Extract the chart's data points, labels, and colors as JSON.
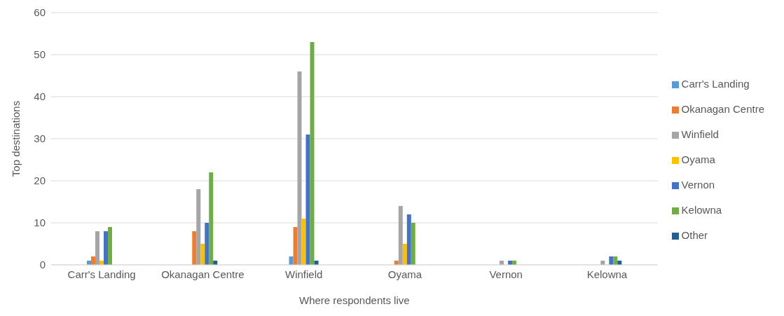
{
  "chart_data": {
    "type": "bar",
    "xlabel": "Where respondents live",
    "ylabel": "Top destinations",
    "categories": [
      "Carr's Landing",
      "Okanagan Centre",
      "Winfield",
      "Oyama",
      "Vernon",
      "Kelowna"
    ],
    "series": [
      {
        "name": "Carr's Landing",
        "color": "#5b9bd5",
        "values": [
          1,
          0,
          2,
          0,
          0,
          0
        ]
      },
      {
        "name": "Okanagan Centre",
        "color": "#ed7d31",
        "values": [
          2,
          8,
          9,
          1,
          0,
          0
        ]
      },
      {
        "name": "Winfield",
        "color": "#a5a5a5",
        "values": [
          8,
          18,
          46,
          14,
          1,
          1
        ]
      },
      {
        "name": "Oyama",
        "color": "#ffc000",
        "values": [
          1,
          5,
          11,
          5,
          0,
          0
        ]
      },
      {
        "name": "Vernon",
        "color": "#4472c4",
        "values": [
          8,
          10,
          31,
          12,
          1,
          2
        ]
      },
      {
        "name": "Kelowna",
        "color": "#70ad47",
        "values": [
          9,
          22,
          53,
          10,
          1,
          2
        ]
      },
      {
        "name": "Other",
        "color": "#255e91",
        "values": [
          0,
          1,
          1,
          0,
          0,
          1
        ]
      }
    ],
    "ylim": [
      0,
      60
    ],
    "yticks": [
      0,
      10,
      20,
      30,
      40,
      50,
      60
    ],
    "grid": "y",
    "legend": "right"
  }
}
